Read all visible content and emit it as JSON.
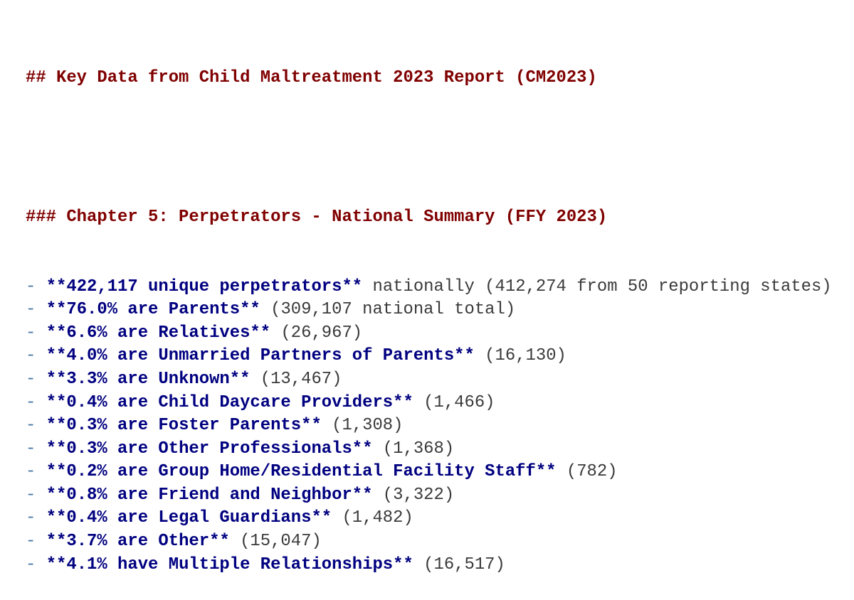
{
  "h2": "## Key Data from Child Maltreatment 2023 Report (CM2023)",
  "h3": "### Chapter 5: Perpetrators - National Summary (FFY 2023)",
  "colors": {
    "heading": "#800000",
    "bold": "#000080",
    "bullet": "#4a78a8",
    "text": "#3a3a3a"
  },
  "items": [
    {
      "bold": "**422,117 unique perpetrators**",
      "rest": " nationally (412,274 from 50 reporting states)"
    },
    {
      "bold": "**76.0% are Parents**",
      "rest": " (309,107 national total)"
    },
    {
      "bold": "**6.6% are Relatives**",
      "rest": " (26,967)"
    },
    {
      "bold": "**4.0% are Unmarried Partners of Parents**",
      "rest": " (16,130)"
    },
    {
      "bold": "**3.3% are Unknown**",
      "rest": " (13,467)"
    },
    {
      "bold": "**0.4% are Child Daycare Providers**",
      "rest": " (1,466)"
    },
    {
      "bold": "**0.3% are Foster Parents**",
      "rest": " (1,308)"
    },
    {
      "bold": "**0.3% are Other Professionals**",
      "rest": " (1,368)"
    },
    {
      "bold": "**0.2% are Group Home/Residential Facility Staff**",
      "rest": " (782)"
    },
    {
      "bold": "**0.8% are Friend and Neighbor**",
      "rest": " (3,322)"
    },
    {
      "bold": "**0.4% are Legal Guardians**",
      "rest": " (1,482)"
    },
    {
      "bold": "**3.7% are Other**",
      "rest": " (15,047)"
    },
    {
      "bold": "**4.1% have Multiple Relationships**",
      "rest": " (16,517)"
    }
  ],
  "bullet": "- "
}
